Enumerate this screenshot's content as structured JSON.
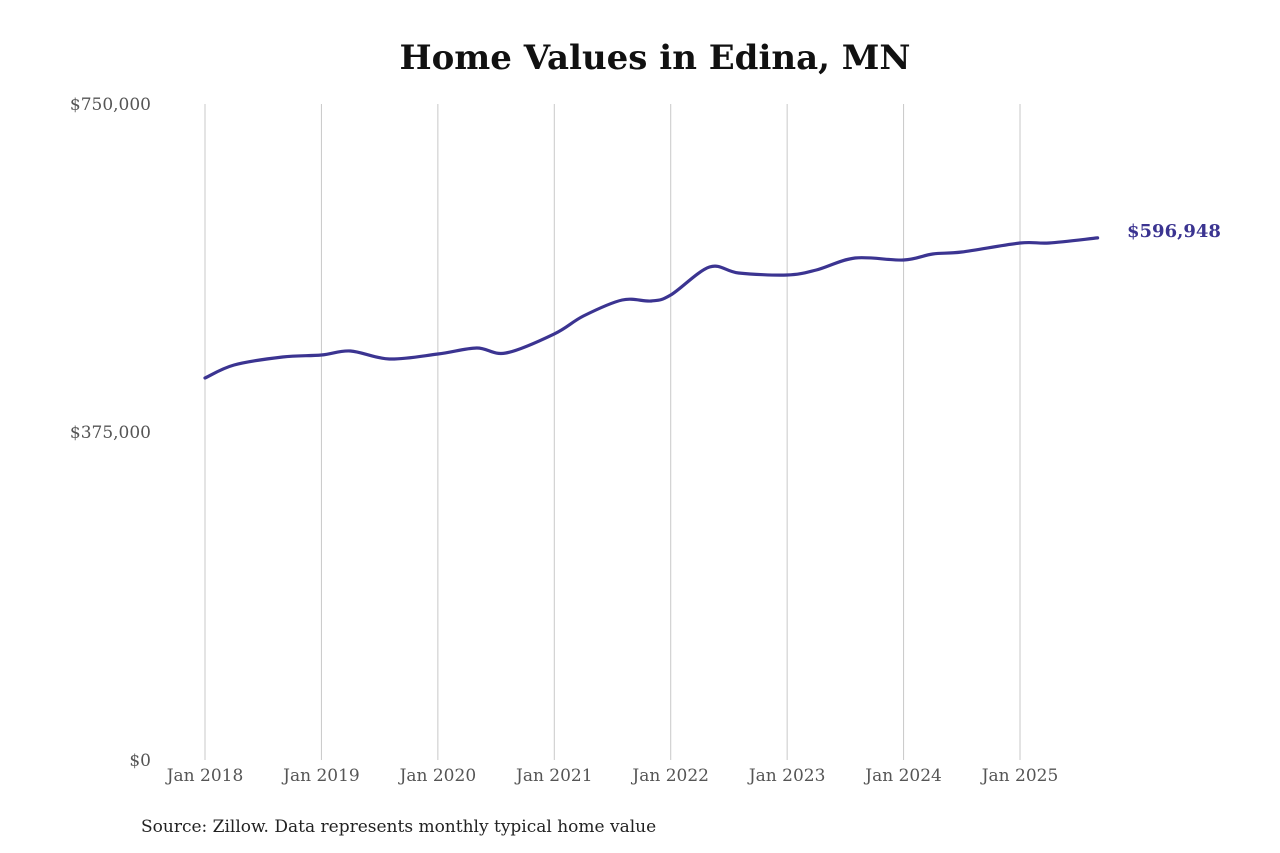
{
  "chart_data": {
    "type": "line",
    "title": "Home Values in Edina, MN",
    "xlabel": "",
    "ylabel": "",
    "ylim": [
      0,
      750000
    ],
    "y_ticks": [
      {
        "value": 750000,
        "label": "$750,000"
      },
      {
        "value": 375000,
        "label": "$375,000"
      },
      {
        "value": 0,
        "label": "$0"
      }
    ],
    "x_ticks": [
      "Jan 2018",
      "Jan 2019",
      "Jan 2020",
      "Jan 2021",
      "Jan 2022",
      "Jan 2023",
      "Jan 2024",
      "Jan 2025"
    ],
    "grid": {
      "vertical": true,
      "horizontal": false
    },
    "legend": "none",
    "series": [
      {
        "name": "Typical home value",
        "color": "#3b3491",
        "x": [
          "2018-01",
          "2018-04",
          "2018-09",
          "2019-01",
          "2019-04",
          "2019-08",
          "2020-01",
          "2020-05",
          "2020-08",
          "2021-01",
          "2021-04",
          "2021-08",
          "2021-11",
          "2022-01",
          "2022-05",
          "2022-08",
          "2023-01",
          "2023-04",
          "2023-08",
          "2024-01",
          "2024-04",
          "2024-07",
          "2025-01",
          "2025-04",
          "2025-09"
        ],
        "values": [
          436700,
          451600,
          460700,
          463000,
          467600,
          458500,
          464200,
          471000,
          465300,
          487100,
          507600,
          525900,
          524800,
          531600,
          563600,
          556800,
          554500,
          560200,
          573900,
          571600,
          578500,
          580800,
          591100,
          591100,
          596948
        ]
      }
    ],
    "annotations": [
      {
        "text": "$596,948",
        "at": "2025-09",
        "value": 596948
      }
    ],
    "source": "Source: Zillow. Data represents monthly typical home value"
  },
  "colors": {
    "line": "#3b3491",
    "grid": "#c8c8c8",
    "tick_text": "#555555"
  }
}
